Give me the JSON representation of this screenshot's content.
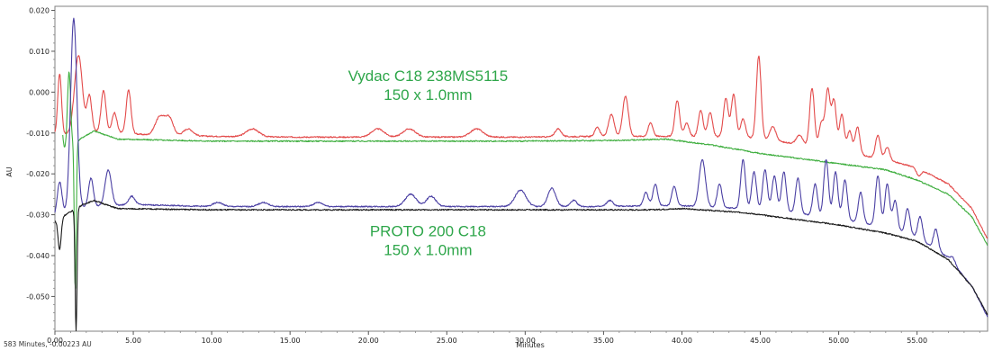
{
  "chart_data": {
    "type": "line",
    "title": "",
    "xlabel": "Minutes",
    "ylabel": "AU",
    "xlim": [
      0,
      59.5
    ],
    "ylim": [
      -0.0585,
      0.021
    ],
    "x_ticks": [
      "0.00",
      "5.00",
      "10.00",
      "15.00",
      "20.00",
      "25.00",
      "30.00",
      "35.00",
      "40.00",
      "45.00",
      "50.00",
      "55.00"
    ],
    "y_ticks": [
      "0.020",
      "0.010",
      "0.000",
      "-0.010",
      "-0.020",
      "-0.030",
      "-0.040",
      "-0.050"
    ],
    "grid": false,
    "colors": {
      "vydac_chromatogram": "#e34a4a",
      "vydac_blank": "#3fae3f",
      "proto_chromatogram": "#4a3fa3",
      "proto_blank": "#1a1a1a",
      "annotation": "#2ea64a"
    },
    "annotations": [
      {
        "line1": "Vydac C18 238MS5115",
        "line2": "150 x 1.0mm",
        "x": 23.8,
        "y": 0.0005
      },
      {
        "line1": "PROTO 200 C18",
        "line2": "150 x 1.0mm",
        "x": 23.8,
        "y": -0.0375
      }
    ],
    "series": [
      {
        "key": "vydac_chromatogram",
        "color": "#e34a4a",
        "baseline": [
          [
            0,
            -0.0105
          ],
          [
            3,
            -0.0095
          ],
          [
            6,
            -0.0105
          ],
          [
            10,
            -0.0108
          ],
          [
            15,
            -0.011
          ],
          [
            20,
            -0.011
          ],
          [
            25,
            -0.011
          ],
          [
            30,
            -0.011
          ],
          [
            35,
            -0.0108
          ],
          [
            40,
            -0.0108
          ],
          [
            44,
            -0.011
          ],
          [
            47,
            -0.0125
          ],
          [
            50,
            -0.0145
          ],
          [
            53,
            -0.0165
          ],
          [
            55,
            -0.0185
          ],
          [
            57,
            -0.0225
          ],
          [
            58.5,
            -0.0285
          ],
          [
            59.5,
            -0.036
          ]
        ],
        "peaks": [
          [
            0.3,
            0.0045,
            0.12
          ],
          [
            1.5,
            0.009,
            0.25
          ],
          [
            2.2,
            -0.001,
            0.15
          ],
          [
            3.1,
            0.0005,
            0.15
          ],
          [
            3.8,
            -0.005,
            0.15
          ],
          [
            4.7,
            0.0005,
            0.15
          ],
          [
            6.7,
            -0.006,
            0.3
          ],
          [
            7.3,
            -0.0065,
            0.25
          ],
          [
            8.5,
            -0.009,
            0.3
          ],
          [
            12.6,
            -0.009,
            0.4
          ],
          [
            20.6,
            -0.009,
            0.4
          ],
          [
            22.6,
            -0.009,
            0.4
          ],
          [
            26.9,
            -0.009,
            0.4
          ],
          [
            32.1,
            -0.009,
            0.2
          ],
          [
            34.6,
            -0.0085,
            0.15
          ],
          [
            35.5,
            -0.0055,
            0.18
          ],
          [
            36.4,
            -0.001,
            0.18
          ],
          [
            38.0,
            -0.0075,
            0.15
          ],
          [
            39.7,
            -0.002,
            0.15
          ],
          [
            40.3,
            -0.0075,
            0.15
          ],
          [
            41.2,
            -0.0045,
            0.15
          ],
          [
            41.8,
            -0.005,
            0.15
          ],
          [
            42.8,
            -0.0015,
            0.15
          ],
          [
            43.3,
            -0.0005,
            0.15
          ],
          [
            43.9,
            -0.0065,
            0.15
          ],
          [
            44.9,
            0.0088,
            0.15
          ],
          [
            45.8,
            -0.0085,
            0.2
          ],
          [
            47.5,
            -0.0105,
            0.2
          ],
          [
            48.3,
            0.001,
            0.15
          ],
          [
            48.9,
            -0.0075,
            0.15
          ],
          [
            49.3,
            0.0005,
            0.15
          ],
          [
            49.7,
            -0.002,
            0.15
          ],
          [
            50.2,
            -0.0055,
            0.15
          ],
          [
            50.7,
            -0.0095,
            0.15
          ],
          [
            51.2,
            -0.0085,
            0.15
          ],
          [
            52.5,
            -0.0105,
            0.15
          ],
          [
            53.1,
            -0.0135,
            0.15
          ],
          [
            55.1,
            -0.0205,
            0.15
          ]
        ]
      },
      {
        "key": "vydac_blank",
        "color": "#3fae3f",
        "baseline": [
          [
            0.5,
            -0.0145
          ],
          [
            1.8,
            -0.011
          ],
          [
            2.5,
            -0.0095
          ],
          [
            4,
            -0.0115
          ],
          [
            10,
            -0.012
          ],
          [
            20,
            -0.012
          ],
          [
            30,
            -0.012
          ],
          [
            36,
            -0.0118
          ],
          [
            39,
            -0.0115
          ],
          [
            42,
            -0.013
          ],
          [
            45,
            -0.015
          ],
          [
            48,
            -0.0165
          ],
          [
            51,
            -0.018
          ],
          [
            53,
            -0.019
          ],
          [
            55,
            -0.0215
          ],
          [
            57,
            -0.025
          ],
          [
            58.5,
            -0.0305
          ],
          [
            59.5,
            -0.0375
          ]
        ],
        "peaks": [
          [
            0.3,
            0.002,
            0.12
          ],
          [
            0.9,
            0.005,
            0.1
          ],
          [
            1.3,
            -0.0485,
            0.06
          ]
        ]
      },
      {
        "key": "proto_chromatogram",
        "color": "#4a3fa3",
        "baseline": [
          [
            0,
            -0.0305
          ],
          [
            2,
            -0.028
          ],
          [
            5,
            -0.0275
          ],
          [
            10,
            -0.028
          ],
          [
            15,
            -0.028
          ],
          [
            20,
            -0.028
          ],
          [
            25,
            -0.028
          ],
          [
            30,
            -0.028
          ],
          [
            35,
            -0.028
          ],
          [
            38,
            -0.0278
          ],
          [
            40,
            -0.0278
          ],
          [
            44,
            -0.0285
          ],
          [
            47,
            -0.0295
          ],
          [
            50,
            -0.031
          ],
          [
            53,
            -0.033
          ],
          [
            55,
            -0.0355
          ],
          [
            57,
            -0.0405
          ],
          [
            58.5,
            -0.0475
          ],
          [
            59.5,
            -0.055
          ]
        ],
        "peaks": [
          [
            0.3,
            -0.022,
            0.15
          ],
          [
            1.2,
            0.018,
            0.2
          ],
          [
            2.3,
            -0.021,
            0.15
          ],
          [
            3.4,
            -0.019,
            0.2
          ],
          [
            4.9,
            -0.0255,
            0.2
          ],
          [
            10.4,
            -0.027,
            0.3
          ],
          [
            13.3,
            -0.027,
            0.3
          ],
          [
            16.8,
            -0.027,
            0.3
          ],
          [
            22.7,
            -0.025,
            0.35
          ],
          [
            24,
            -0.0255,
            0.3
          ],
          [
            29.7,
            -0.024,
            0.35
          ],
          [
            31.7,
            -0.0235,
            0.25
          ],
          [
            33.1,
            -0.0265,
            0.2
          ],
          [
            35.4,
            -0.0265,
            0.2
          ],
          [
            37.7,
            -0.0245,
            0.15
          ],
          [
            38.3,
            -0.0225,
            0.15
          ],
          [
            39.5,
            -0.023,
            0.15
          ],
          [
            41.3,
            -0.0165,
            0.2
          ],
          [
            42.4,
            -0.0225,
            0.15
          ],
          [
            43.9,
            -0.0165,
            0.15
          ],
          [
            44.6,
            -0.0195,
            0.15
          ],
          [
            45.3,
            -0.019,
            0.15
          ],
          [
            45.9,
            -0.0205,
            0.15
          ],
          [
            46.5,
            -0.0195,
            0.15
          ],
          [
            47.4,
            -0.021,
            0.15
          ],
          [
            48.5,
            -0.0225,
            0.15
          ],
          [
            49.2,
            -0.0165,
            0.15
          ],
          [
            49.8,
            -0.0195,
            0.15
          ],
          [
            50.4,
            -0.0215,
            0.15
          ],
          [
            51.4,
            -0.0245,
            0.15
          ],
          [
            52.5,
            -0.0205,
            0.15
          ],
          [
            53.1,
            -0.0225,
            0.15
          ],
          [
            53.6,
            -0.0265,
            0.15
          ],
          [
            54.4,
            -0.0285,
            0.15
          ],
          [
            55.2,
            -0.0305,
            0.15
          ],
          [
            56.2,
            -0.0335,
            0.15
          ],
          [
            57.3,
            -0.0405,
            0.15
          ]
        ]
      },
      {
        "key": "proto_blank",
        "color": "#1a1a1a",
        "baseline": [
          [
            0,
            -0.0315
          ],
          [
            1.8,
            -0.0275
          ],
          [
            2.5,
            -0.0265
          ],
          [
            4,
            -0.0285
          ],
          [
            10,
            -0.0288
          ],
          [
            20,
            -0.0288
          ],
          [
            30,
            -0.0288
          ],
          [
            35,
            -0.0288
          ],
          [
            38,
            -0.0288
          ],
          [
            40,
            -0.0285
          ],
          [
            44,
            -0.0295
          ],
          [
            47,
            -0.031
          ],
          [
            50,
            -0.0325
          ],
          [
            53,
            -0.0345
          ],
          [
            55,
            -0.0365
          ],
          [
            57,
            -0.041
          ],
          [
            58.5,
            -0.0475
          ],
          [
            59.5,
            -0.0545
          ]
        ],
        "peaks": [
          [
            0.3,
            -0.0385,
            0.1
          ],
          [
            1.35,
            -0.0585,
            0.06
          ]
        ]
      }
    ]
  },
  "status_text": "583 Minutes, -0.00223 AU"
}
